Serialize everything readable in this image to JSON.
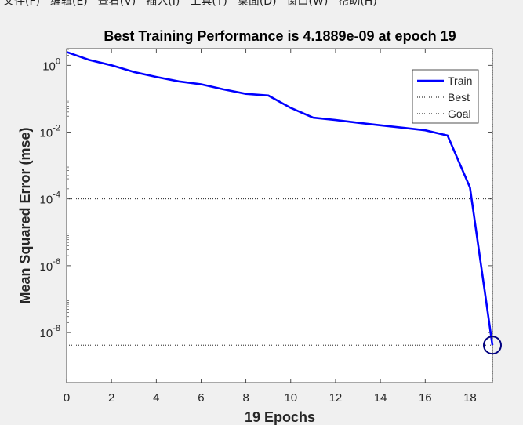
{
  "menu": {
    "items": [
      "文件(F)",
      "编辑(E)",
      "查看(V)",
      "插入(I)",
      "工具(T)",
      "桌面(D)",
      "窗口(W)",
      "帮助(H)"
    ]
  },
  "chart_data": {
    "type": "line",
    "title": "Best Training Performance is 4.1889e-09 at epoch 19",
    "xlabel": "19 Epochs",
    "ylabel": "Mean Squared Error  (mse)",
    "xlim": [
      0,
      19
    ],
    "ylim_log10": [
      -9.5,
      0.5
    ],
    "yscale": "log",
    "x_ticks": [
      0,
      2,
      4,
      6,
      8,
      10,
      12,
      14,
      16,
      18
    ],
    "y_ticks": [
      {
        "base": "10",
        "exp": "0",
        "value": 1
      },
      {
        "base": "10",
        "exp": "-2",
        "value": 0.01
      },
      {
        "base": "10",
        "exp": "-4",
        "value": 0.0001
      },
      {
        "base": "10",
        "exp": "-6",
        "value": 1e-06
      },
      {
        "base": "10",
        "exp": "-8",
        "value": 1e-08
      }
    ],
    "series": [
      {
        "name": "Train",
        "color": "#0000ff",
        "x": [
          0,
          1,
          2,
          3,
          4,
          5,
          6,
          7,
          8,
          9,
          10,
          11,
          12,
          13,
          14,
          15,
          16,
          17,
          18,
          19
        ],
        "y": [
          2.5,
          1.45,
          1.0,
          0.63,
          0.45,
          0.33,
          0.27,
          0.19,
          0.14,
          0.125,
          0.053,
          0.027,
          0.023,
          0.019,
          0.016,
          0.0135,
          0.0113,
          0.0079,
          0.00022,
          4.1889e-09
        ]
      }
    ],
    "best": {
      "name": "Best",
      "epoch": 19,
      "value": 4.1889e-09,
      "style": "dotted"
    },
    "goal": {
      "name": "Goal",
      "value": 0.0001,
      "style": "dotted"
    },
    "legend": {
      "position": "top-right",
      "entries": [
        "Train",
        "Best",
        "Goal"
      ]
    },
    "colors": {
      "train": "#0000ff",
      "guide": "#000000",
      "marker": "#000080"
    }
  }
}
